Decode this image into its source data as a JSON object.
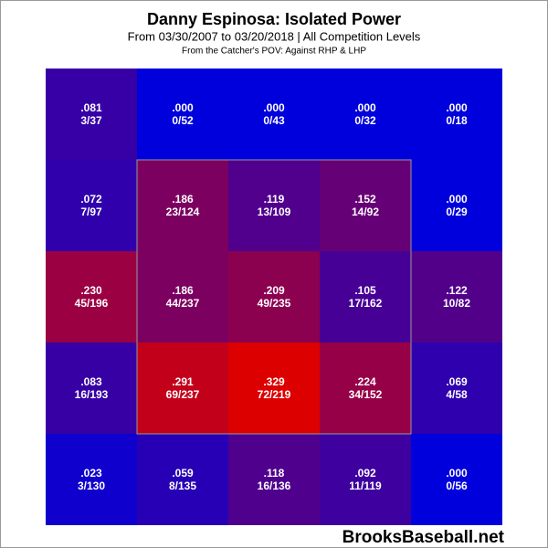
{
  "title": "Danny Espinosa: Isolated Power",
  "subtitle": "From 03/30/2007 to 03/20/2018 | All Competition Levels",
  "note": "From the Catcher's POV:   Against RHP & LHP",
  "watermark": "BrooksBaseball.net",
  "grid": {
    "rows": [
      [
        {
          "iso": ".081",
          "ratio": "3/37",
          "color": "#3600a6"
        },
        {
          "iso": ".000",
          "ratio": "0/52",
          "color": "#0000dc"
        },
        {
          "iso": ".000",
          "ratio": "0/43",
          "color": "#0000dc"
        },
        {
          "iso": ".000",
          "ratio": "0/32",
          "color": "#0000dc"
        },
        {
          "iso": ".000",
          "ratio": "0/18",
          "color": "#0000dc"
        }
      ],
      [
        {
          "iso": ".072",
          "ratio": "7/97",
          "color": "#3000ac"
        },
        {
          "iso": ".186",
          "ratio": "23/124",
          "color": "#7c0060"
        },
        {
          "iso": ".119",
          "ratio": "13/109",
          "color": "#50008c"
        },
        {
          "iso": ".152",
          "ratio": "14/92",
          "color": "#660076"
        },
        {
          "iso": ".000",
          "ratio": "0/29",
          "color": "#0000dc"
        }
      ],
      [
        {
          "iso": ".230",
          "ratio": "45/196",
          "color": "#9a0042"
        },
        {
          "iso": ".186",
          "ratio": "44/237",
          "color": "#7c0060"
        },
        {
          "iso": ".209",
          "ratio": "49/235",
          "color": "#8c0050"
        },
        {
          "iso": ".105",
          "ratio": "17/162",
          "color": "#460096"
        },
        {
          "iso": ".122",
          "ratio": "10/82",
          "color": "#52008a"
        }
      ],
      [
        {
          "iso": ".083",
          "ratio": "16/193",
          "color": "#3700a5"
        },
        {
          "iso": ".291",
          "ratio": "69/237",
          "color": "#c30019"
        },
        {
          "iso": ".329",
          "ratio": "72/219",
          "color": "#dc0000"
        },
        {
          "iso": ".224",
          "ratio": "34/152",
          "color": "#960046"
        },
        {
          "iso": ".069",
          "ratio": "4/58",
          "color": "#2e00ae"
        }
      ],
      [
        {
          "iso": ".023",
          "ratio": "3/130",
          "color": "#0f00cd"
        },
        {
          "iso": ".059",
          "ratio": "8/135",
          "color": "#2700b5"
        },
        {
          "iso": ".118",
          "ratio": "16/136",
          "color": "#4f008d"
        },
        {
          "iso": ".092",
          "ratio": "11/119",
          "color": "#3e009e"
        },
        {
          "iso": ".000",
          "ratio": "0/56",
          "color": "#0000dc"
        }
      ]
    ]
  }
}
